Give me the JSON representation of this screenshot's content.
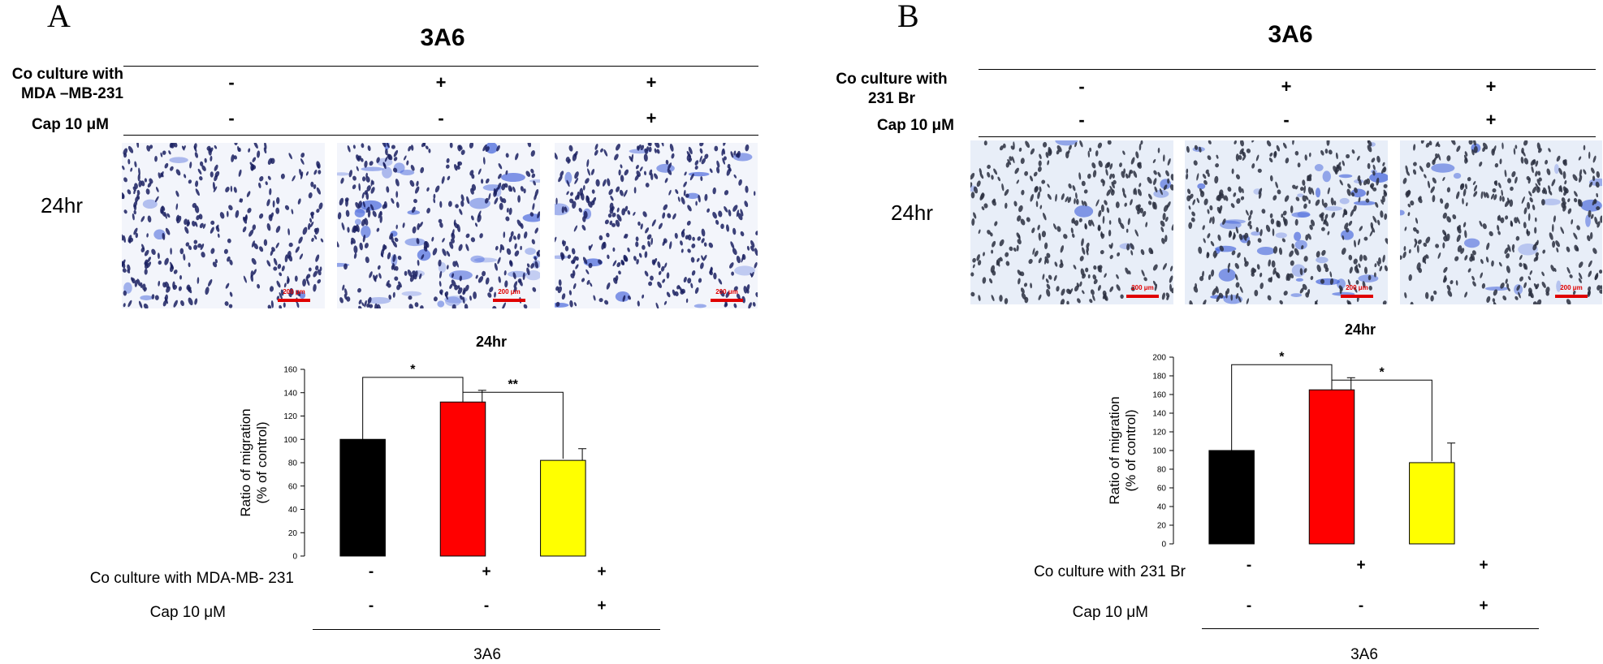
{
  "panels": [
    {
      "letter": "A",
      "group": "3A6",
      "header": {
        "row1_label": [
          "Co culture with",
          "MDA –MB-231"
        ],
        "row1_values": [
          "-",
          "+",
          "+"
        ],
        "row2_label": "Cap 10 μM",
        "row2_values": [
          "-",
          "-",
          "+"
        ]
      },
      "time_label": "24hr",
      "scale_text": "200 μm",
      "micrograph_density": [
        "low",
        "high",
        "medium"
      ],
      "below": {
        "row1_label": "Co culture with MDA-MB- 231",
        "row1_values": [
          "-",
          "+",
          "+"
        ],
        "row2_label": "Cap 10 μM",
        "row2_values": [
          "-",
          "-",
          "+"
        ],
        "group": "3A6"
      }
    },
    {
      "letter": "B",
      "group": "3A6",
      "header": {
        "row1_label": [
          "Co culture with",
          "231 Br"
        ],
        "row1_values": [
          "-",
          "+",
          "+"
        ],
        "row2_label": "Cap 10 μM",
        "row2_values": [
          "-",
          "-",
          "+"
        ]
      },
      "time_label": "24hr",
      "scale_text": "200 μm",
      "micrograph_density": [
        "low",
        "high",
        "medium"
      ],
      "below": {
        "row1_label": "Co culture with 231 Br",
        "row1_values": [
          "-",
          "+",
          "+"
        ],
        "row2_label": "Cap 10 μM",
        "row2_values": [
          "-",
          "-",
          "+"
        ],
        "group": "3A6"
      }
    }
  ],
  "colors": {
    "bar1": "#000000",
    "bar2": "#ff0000",
    "bar3": "#ffff00",
    "scale": "#e00000",
    "stain": "#3a5bd9"
  },
  "chart_data": [
    {
      "type": "bar",
      "title": "24hr",
      "ylabel": [
        "Ratio of  migration",
        "(% of control)"
      ],
      "ylim": [
        0,
        160
      ],
      "yticks": [
        0,
        20,
        40,
        60,
        80,
        100,
        120,
        140,
        160
      ],
      "values": [
        100,
        132,
        82
      ],
      "errors": [
        0,
        10,
        10
      ],
      "colors": [
        "#000000",
        "#ff0000",
        "#ffff00"
      ],
      "significance": [
        {
          "from": 0,
          "to": 1,
          "label": "*"
        },
        {
          "from": 1,
          "to": 2,
          "label": "**"
        }
      ]
    },
    {
      "type": "bar",
      "title": "24hr",
      "ylabel": [
        "Ratio of  migration",
        "(% of control)"
      ],
      "ylim": [
        0,
        200
      ],
      "yticks": [
        0,
        20,
        40,
        60,
        80,
        100,
        120,
        140,
        160,
        180,
        200
      ],
      "values": [
        100,
        165,
        87
      ],
      "errors": [
        0,
        13,
        21
      ],
      "colors": [
        "#000000",
        "#ff0000",
        "#ffff00"
      ],
      "significance": [
        {
          "from": 0,
          "to": 1,
          "label": "*"
        },
        {
          "from": 1,
          "to": 2,
          "label": "*"
        }
      ]
    }
  ]
}
